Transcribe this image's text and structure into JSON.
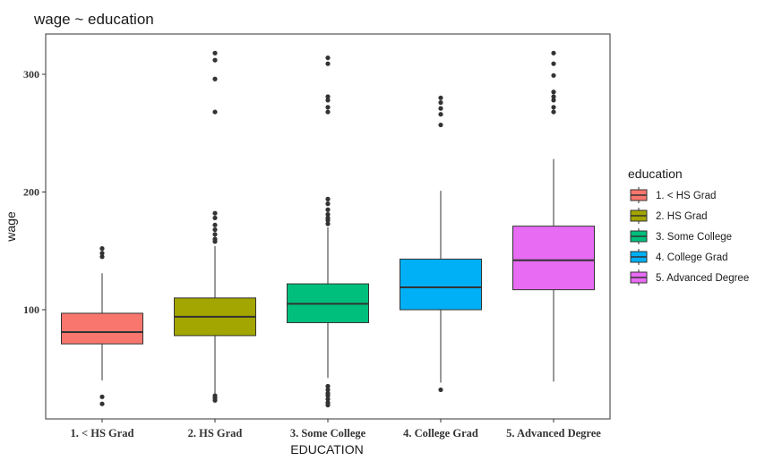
{
  "chart_data": {
    "type": "boxplot",
    "title": "wage ~ education",
    "xlabel": "EDUCATION",
    "ylabel": "wage",
    "ylim": [
      15,
      330
    ],
    "yticks": [
      100,
      200,
      300
    ],
    "grid": false,
    "legend": {
      "title": "education",
      "placement": "right",
      "entries": [
        "1. < HS Grad",
        "2. HS Grad",
        "3. Some College",
        "4. College Grad",
        "5. Advanced Degree"
      ]
    },
    "categories": [
      "1. < HS Grad",
      "2. HS Grad",
      "3. Some College",
      "4. College Grad",
      "5. Advanced Degree"
    ],
    "series": [
      {
        "category": "1. < HS Grad",
        "color": "#F8766D",
        "whisker_low": 40,
        "q1": 71,
        "median": 81,
        "q3": 97,
        "whisker_high": 131,
        "outliers": [
          152,
          148,
          145,
          26,
          20
        ]
      },
      {
        "category": "2. HS Grad",
        "color": "#A3A500",
        "whisker_low": 29,
        "q1": 78,
        "median": 94,
        "q3": 110,
        "whisker_high": 154,
        "outliers": [
          318,
          312,
          296,
          268,
          182,
          178,
          172,
          168,
          164,
          160,
          158,
          27,
          25,
          23
        ]
      },
      {
        "category": "3. Some College",
        "color": "#00BF7D",
        "whisker_low": 42,
        "q1": 89,
        "median": 105,
        "q3": 122,
        "whisker_high": 170,
        "outliers": [
          314,
          309,
          281,
          278,
          272,
          268,
          194,
          190,
          185,
          181,
          178,
          176,
          173,
          35,
          32,
          29,
          27,
          24,
          21,
          19
        ]
      },
      {
        "category": "4. College Grad",
        "color": "#00B0F6",
        "whisker_low": 38,
        "q1": 100,
        "median": 119,
        "q3": 143,
        "whisker_high": 201,
        "outliers": [
          280,
          276,
          271,
          266,
          257,
          32
        ]
      },
      {
        "category": "5. Advanced Degree",
        "color": "#E76BF3",
        "whisker_low": 39,
        "q1": 117,
        "median": 142,
        "q3": 171,
        "whisker_high": 228,
        "outliers": [
          318,
          309,
          299,
          285,
          281,
          278,
          272,
          268
        ]
      }
    ]
  }
}
